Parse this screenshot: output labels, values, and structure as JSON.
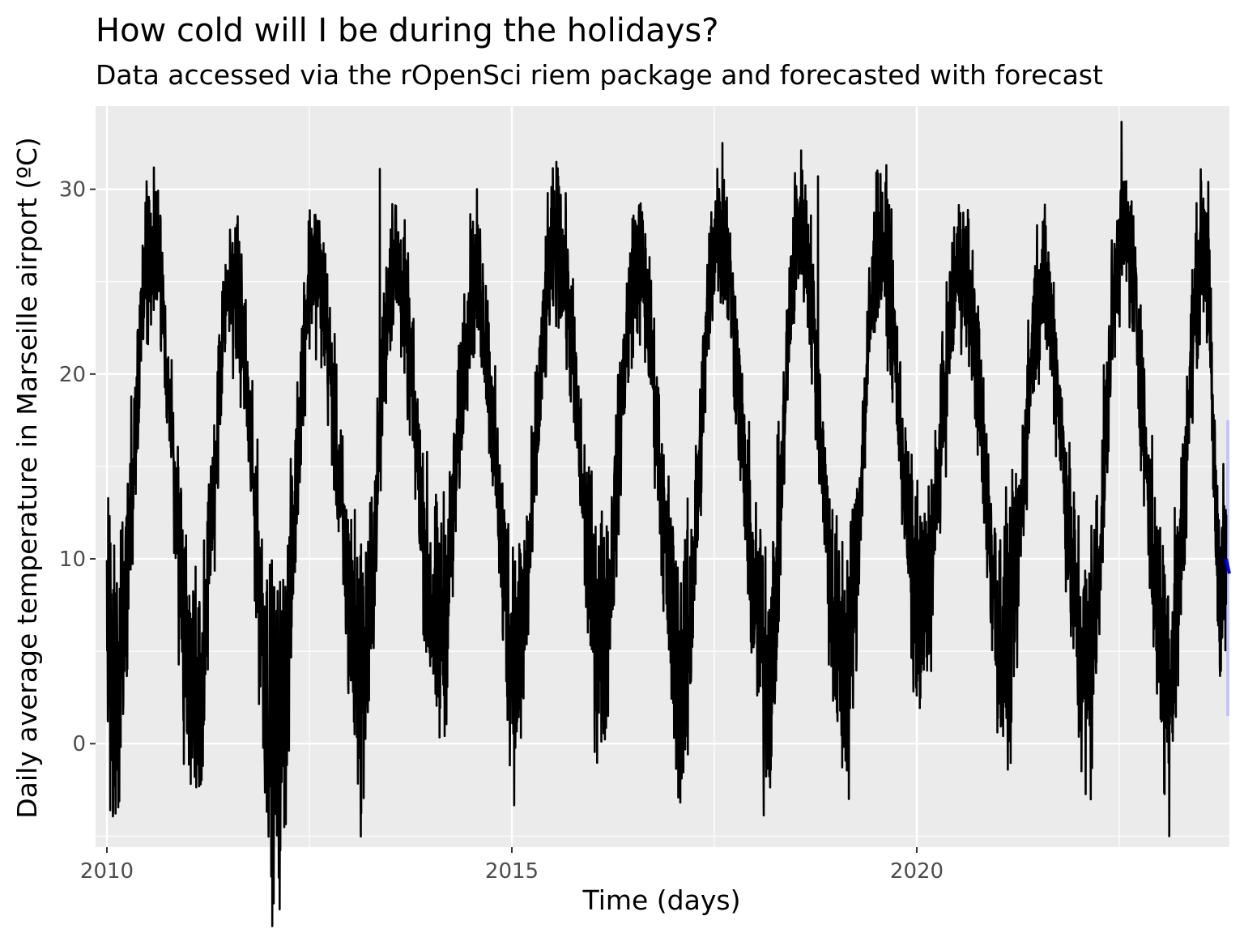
{
  "colors": {
    "panel_background": "#EBEBEB",
    "grid": "#FFFFFF",
    "series_line": "#000000",
    "forecast_line": "#0000FF",
    "forecast_band": "#B3B3FF"
  },
  "chart_data": {
    "type": "line",
    "title": "How cold will I be during the holidays?",
    "subtitle": "Data accessed via the rOpenSci riem package and forecasted with forecast",
    "xlabel": "Time (days)",
    "ylabel": "Daily average temperature in Marseille airport (ºC)",
    "xlim": [
      2009.86,
      2023.86
    ],
    "ylim": [
      -5.6,
      34.5
    ],
    "x_ticks": [
      2010,
      2015,
      2020
    ],
    "x_tick_labels": [
      "2010",
      "2015",
      "2020"
    ],
    "y_ticks": [
      0,
      10,
      20,
      30
    ],
    "y_tick_labels": [
      "0",
      "10",
      "20",
      "30"
    ],
    "grid": true,
    "legend": "none",
    "seasonal_extremes": {
      "x": [
        2010.0,
        2010.08,
        2010.55,
        2011.1,
        2011.55,
        2012.1,
        2012.55,
        2013.15,
        2013.55,
        2014.1,
        2014.55,
        2015.05,
        2015.55,
        2016.1,
        2016.55,
        2017.1,
        2017.55,
        2018.15,
        2018.55,
        2019.1,
        2019.55,
        2020.05,
        2020.55,
        2021.1,
        2021.55,
        2022.1,
        2022.55,
        2023.1,
        2023.55,
        2023.75
      ],
      "y": [
        6,
        2,
        27,
        3,
        25,
        0,
        26,
        4,
        26,
        6,
        25,
        5,
        27,
        6,
        26,
        4,
        28,
        4,
        28,
        4,
        27,
        7,
        26,
        5,
        25,
        4,
        28,
        4,
        27,
        9
      ]
    },
    "notable_points": [
      {
        "x": 2010.05,
        "y": -0.9
      },
      {
        "x": 2010.12,
        "y": -1.4
      },
      {
        "x": 2010.95,
        "y": -1.1
      },
      {
        "x": 2012.08,
        "y": -3.8
      },
      {
        "x": 2013.37,
        "y": 31.1
      },
      {
        "x": 2017.14,
        "y": -0.3
      },
      {
        "x": 2017.6,
        "y": 32.5
      },
      {
        "x": 2018.78,
        "y": 30.7
      },
      {
        "x": 2019.5,
        "y": 30.9
      },
      {
        "x": 2022.55,
        "y": 30.4
      },
      {
        "x": 2023.6,
        "y": 30.4
      }
    ],
    "forecast": {
      "x": [
        2023.82,
        2023.86
      ],
      "mean": [
        10,
        9.2
      ],
      "lower_95": [
        1.5,
        1.5
      ],
      "upper_95": [
        17.5,
        17.5
      ]
    }
  }
}
